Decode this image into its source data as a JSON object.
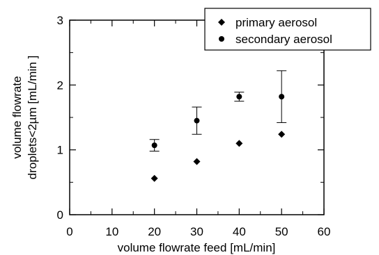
{
  "chart_data": {
    "type": "scatter",
    "xlabel": "volume flowrate feed [mL/min]",
    "ylabel_line1": "volume flowrate",
    "ylabel_line2": "droplets<2µm [mL/min ]",
    "xlim": [
      0,
      60
    ],
    "ylim": [
      0,
      3
    ],
    "xticks": [
      0,
      10,
      20,
      30,
      40,
      50,
      60
    ],
    "yticks": [
      0,
      1,
      2,
      3
    ],
    "grid": false,
    "legend_position": "top-right",
    "series": [
      {
        "name": "primary aerosol",
        "marker": "diamond",
        "points": [
          {
            "x": 20,
            "y": 0.56
          },
          {
            "x": 30,
            "y": 0.82
          },
          {
            "x": 40,
            "y": 1.1
          },
          {
            "x": 50,
            "y": 1.24
          }
        ]
      },
      {
        "name": "secondary aerosol",
        "marker": "circle",
        "points": [
          {
            "x": 20,
            "y": 1.07,
            "err_low": 0.98,
            "err_high": 1.16
          },
          {
            "x": 30,
            "y": 1.45,
            "err_low": 1.24,
            "err_high": 1.66
          },
          {
            "x": 40,
            "y": 1.82,
            "err_low": 1.75,
            "err_high": 1.89
          },
          {
            "x": 50,
            "y": 1.82,
            "err_low": 1.42,
            "err_high": 2.22
          }
        ]
      }
    ]
  }
}
